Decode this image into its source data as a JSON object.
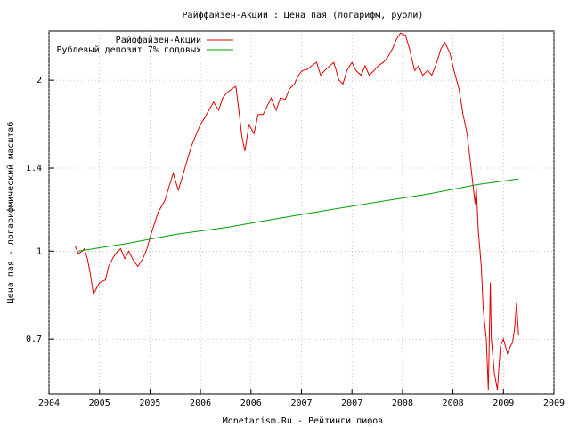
{
  "chart_data": {
    "type": "line",
    "title": "Райффайзен-Акции : Цена пая (логарифм, рубли)",
    "xlabel": "Monetarism.Ru - Рейтинги пифов",
    "ylabel": "Цена пая - логарифмический масштаб",
    "log_y": true,
    "grid": true,
    "legend": "top-left",
    "xlim": [
      2004.0,
      2009.0
    ],
    "xticks": [
      {
        "value": 2004.0,
        "label": "2004"
      },
      {
        "value": 2004.5,
        "label": "2005"
      },
      {
        "value": 2005.0,
        "label": "2005"
      },
      {
        "value": 2005.5,
        "label": "2006"
      },
      {
        "value": 2006.0,
        "label": "2006"
      },
      {
        "value": 2006.5,
        "label": "2007"
      },
      {
        "value": 2007.0,
        "label": "2007"
      },
      {
        "value": 2007.5,
        "label": "2008"
      },
      {
        "value": 2008.0,
        "label": "2008"
      },
      {
        "value": 2008.5,
        "label": "2009"
      },
      {
        "value": 2009.0,
        "label": "2009"
      }
    ],
    "ylim": [
      0.56,
      2.44
    ],
    "yticks": [
      0.7,
      1,
      1.4,
      2
    ],
    "series": [
      {
        "name": "Райффайзен-Акции",
        "color": "#e00000",
        "x": [
          2004.26,
          2004.29,
          2004.33,
          2004.35,
          2004.38,
          2004.41,
          2004.44,
          2004.47,
          2004.5,
          2004.56,
          2004.59,
          2004.63,
          2004.66,
          2004.71,
          2004.75,
          2004.79,
          2004.84,
          2004.88,
          2004.93,
          2004.97,
          2005.01,
          2005.08,
          2005.15,
          2005.19,
          2005.23,
          2005.28,
          2005.32,
          2005.37,
          2005.41,
          2005.46,
          2005.5,
          2005.56,
          2005.63,
          2005.68,
          2005.72,
          2005.76,
          2005.81,
          2005.85,
          2005.88,
          2005.91,
          2005.94,
          2005.98,
          2006.03,
          2006.07,
          2006.12,
          2006.16,
          2006.2,
          2006.25,
          2006.29,
          2006.34,
          2006.38,
          2006.43,
          2006.47,
          2006.51,
          2006.56,
          2006.6,
          2006.65,
          2006.69,
          2006.73,
          2006.78,
          2006.82,
          2006.87,
          2006.91,
          2006.95,
          2007.0,
          2007.04,
          2007.09,
          2007.13,
          2007.17,
          2007.22,
          2007.26,
          2007.31,
          2007.35,
          2007.4,
          2007.44,
          2007.48,
          2007.53,
          2007.57,
          2007.62,
          2007.66,
          2007.7,
          2007.75,
          2007.79,
          2007.84,
          2007.88,
          2007.92,
          2007.97,
          2008.01,
          2008.06,
          2008.1,
          2008.14,
          2008.19,
          2008.22,
          2008.23,
          2008.25,
          2008.28,
          2008.3,
          2008.33,
          2008.35,
          2008.37,
          2008.38,
          2008.41,
          2008.44,
          2008.47,
          2008.5,
          2008.54,
          2008.57,
          2008.59,
          2008.61,
          2008.63,
          2008.65
        ],
        "values": [
          1.02,
          0.99,
          1.0,
          1.01,
          0.97,
          0.91,
          0.84,
          0.86,
          0.88,
          0.89,
          0.94,
          0.97,
          0.99,
          1.01,
          0.97,
          1.0,
          0.96,
          0.94,
          0.97,
          1.01,
          1.07,
          1.17,
          1.23,
          1.3,
          1.37,
          1.28,
          1.35,
          1.45,
          1.53,
          1.61,
          1.67,
          1.74,
          1.83,
          1.77,
          1.86,
          1.9,
          1.93,
          1.95,
          1.77,
          1.59,
          1.5,
          1.67,
          1.61,
          1.74,
          1.74,
          1.8,
          1.86,
          1.77,
          1.86,
          1.85,
          1.93,
          1.97,
          2.04,
          2.08,
          2.09,
          2.12,
          2.15,
          2.04,
          2.08,
          2.12,
          2.15,
          2.0,
          1.97,
          2.08,
          2.15,
          2.08,
          2.04,
          2.12,
          2.04,
          2.08,
          2.12,
          2.15,
          2.19,
          2.27,
          2.36,
          2.42,
          2.4,
          2.27,
          2.08,
          2.12,
          2.04,
          2.08,
          2.04,
          2.15,
          2.27,
          2.33,
          2.23,
          2.08,
          1.93,
          1.74,
          1.61,
          1.35,
          1.21,
          1.3,
          1.09,
          0.94,
          0.79,
          0.7,
          0.57,
          0.88,
          0.7,
          0.61,
          0.57,
          0.68,
          0.7,
          0.66,
          0.68,
          0.69,
          0.73,
          0.81,
          0.71
        ]
      },
      {
        "name": "Рублевый депозит 7% годовых",
        "color": "#00a000",
        "x": [
          2004.29,
          2004.75,
          2005.25,
          2005.75,
          2006.25,
          2006.75,
          2007.25,
          2007.75,
          2008.25,
          2008.65
        ],
        "values": [
          1.0,
          1.03,
          1.07,
          1.1,
          1.14,
          1.18,
          1.22,
          1.26,
          1.31,
          1.34
        ]
      }
    ]
  }
}
